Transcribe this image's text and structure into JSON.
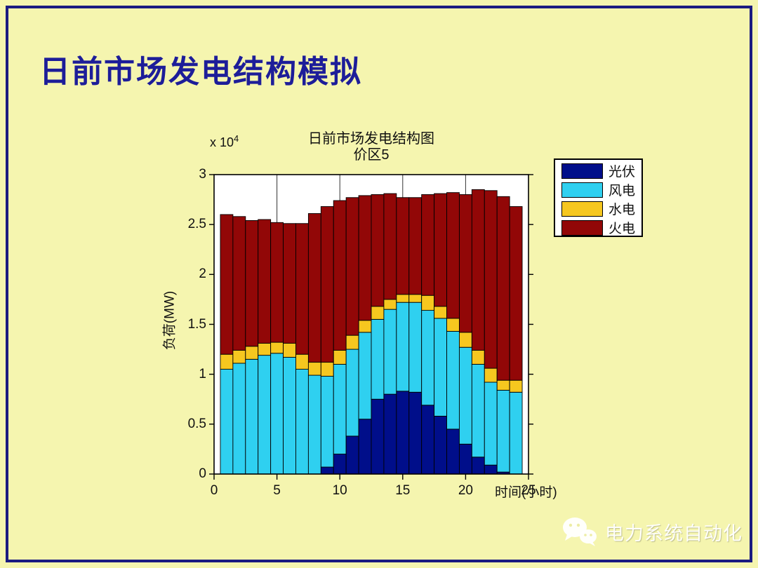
{
  "slide": {
    "title": "日前市场发电结构模拟"
  },
  "watermark": {
    "icon": "wechat-icon",
    "text": "电力系统自动化"
  },
  "chart_data": {
    "type": "bar",
    "stacked": true,
    "title_line1": "日前市场发电结构图",
    "title_line2": "价区5",
    "xlabel": "时间(小时)",
    "ylabel": "负荷(MW)",
    "y_multiplier_text": "x 10",
    "y_multiplier_exponent": "4",
    "y_unit_scale": "1e4 MW",
    "xlim": [
      0,
      25
    ],
    "ylim": [
      0,
      3
    ],
    "x_ticks": [
      "0",
      "5",
      "10",
      "15",
      "20",
      "25"
    ],
    "x_tick_values": [
      0,
      5,
      10,
      15,
      20,
      25
    ],
    "y_ticks": [
      "0",
      "0.5",
      "1",
      "1.5",
      "2",
      "2.5",
      "3"
    ],
    "y_tick_values": [
      0,
      0.5,
      1,
      1.5,
      2,
      2.5,
      3
    ],
    "x_gridlines": [
      5,
      10,
      15,
      20
    ],
    "grid": "vertical-only",
    "legend_position": "outside-top-right",
    "plot_background": "#ffffff",
    "x": [
      1,
      2,
      3,
      4,
      5,
      6,
      7,
      8,
      9,
      10,
      11,
      12,
      13,
      14,
      15,
      16,
      17,
      18,
      19,
      20,
      21,
      22,
      23,
      24
    ],
    "series": [
      {
        "key": "solar",
        "name": "光伏",
        "color": "#000e8a",
        "values": [
          0,
          0,
          0,
          0,
          0,
          0,
          0,
          0,
          0.07,
          0.2,
          0.38,
          0.55,
          0.75,
          0.8,
          0.83,
          0.82,
          0.69,
          0.58,
          0.45,
          0.3,
          0.17,
          0.09,
          0.02,
          0
        ]
      },
      {
        "key": "wind",
        "name": "风电",
        "color": "#2fd0f0",
        "values": [
          1.05,
          1.11,
          1.15,
          1.19,
          1.21,
          1.17,
          1.05,
          0.99,
          0.91,
          0.9,
          0.87,
          0.87,
          0.8,
          0.85,
          0.89,
          0.9,
          0.95,
          0.98,
          0.98,
          0.97,
          0.93,
          0.83,
          0.82,
          0.82
        ]
      },
      {
        "key": "hydro",
        "name": "水电",
        "color": "#f6c71f",
        "values": [
          0.15,
          0.13,
          0.13,
          0.12,
          0.11,
          0.14,
          0.15,
          0.13,
          0.14,
          0.14,
          0.14,
          0.12,
          0.13,
          0.1,
          0.08,
          0.08,
          0.15,
          0.12,
          0.13,
          0.15,
          0.14,
          0.14,
          0.1,
          0.12
        ]
      },
      {
        "key": "thermal",
        "name": "火电",
        "color": "#920707",
        "values": [
          1.4,
          1.34,
          1.26,
          1.24,
          1.2,
          1.2,
          1.31,
          1.49,
          1.56,
          1.5,
          1.38,
          1.25,
          1.12,
          1.06,
          0.97,
          0.97,
          1.01,
          1.13,
          1.26,
          1.38,
          1.61,
          1.78,
          1.84,
          1.74
        ]
      }
    ]
  }
}
